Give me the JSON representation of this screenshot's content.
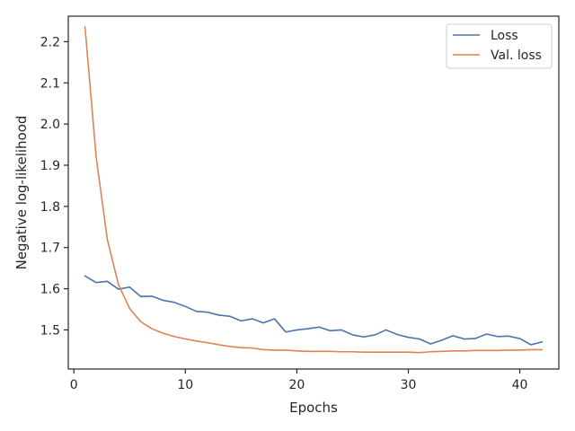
{
  "chart_data": {
    "type": "line",
    "xlabel": "Epochs",
    "ylabel": "Negative log-likelihood",
    "xlim": [
      -0.5,
      43.5
    ],
    "ylim": [
      1.405,
      2.262
    ],
    "xticks": [
      0,
      10,
      20,
      30,
      40
    ],
    "yticks": [
      1.5,
      1.6,
      1.7,
      1.8,
      1.9,
      2.0,
      2.1,
      2.2
    ],
    "xtick_labels": [
      "0",
      "10",
      "20",
      "30",
      "40"
    ],
    "ytick_labels": [
      "1.5",
      "1.6",
      "1.7",
      "1.8",
      "1.9",
      "2.0",
      "2.1",
      "2.2"
    ],
    "grid": false,
    "legend_position": "top-right",
    "x": [
      1,
      2,
      3,
      4,
      5,
      6,
      7,
      8,
      9,
      10,
      11,
      12,
      13,
      14,
      15,
      16,
      17,
      18,
      19,
      20,
      21,
      22,
      23,
      24,
      25,
      26,
      27,
      28,
      29,
      30,
      31,
      32,
      33,
      34,
      35,
      36,
      37,
      38,
      39,
      40,
      41,
      42
    ],
    "series": [
      {
        "name": "Loss",
        "color": "#4c72b0",
        "values": [
          1.631,
          1.615,
          1.618,
          1.599,
          1.604,
          1.581,
          1.582,
          1.572,
          1.567,
          1.557,
          1.545,
          1.543,
          1.536,
          1.533,
          1.522,
          1.527,
          1.517,
          1.527,
          1.495,
          1.5,
          1.503,
          1.507,
          1.498,
          1.5,
          1.488,
          1.483,
          1.488,
          1.5,
          1.489,
          1.482,
          1.478,
          1.466,
          1.475,
          1.486,
          1.478,
          1.479,
          1.49,
          1.484,
          1.485,
          1.479,
          1.464,
          1.471
        ]
      },
      {
        "name": "Val. loss",
        "color": "#dd8452",
        "values": [
          2.236,
          1.92,
          1.72,
          1.61,
          1.552,
          1.52,
          1.503,
          1.492,
          1.484,
          1.478,
          1.473,
          1.469,
          1.464,
          1.46,
          1.457,
          1.456,
          1.452,
          1.451,
          1.451,
          1.449,
          1.448,
          1.448,
          1.448,
          1.447,
          1.447,
          1.446,
          1.446,
          1.446,
          1.446,
          1.446,
          1.445,
          1.447,
          1.448,
          1.449,
          1.449,
          1.45,
          1.45,
          1.45,
          1.451,
          1.451,
          1.452,
          1.452
        ]
      }
    ]
  }
}
